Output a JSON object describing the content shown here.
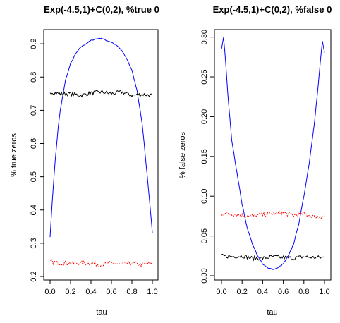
{
  "chart_data": [
    {
      "type": "line",
      "title": "Exp(-4.5,1)+C(0,2), %true 0",
      "xlabel": "tau",
      "ylabel": "% true zeros",
      "xlim": [
        0.0,
        1.0
      ],
      "ylim": [
        0.2,
        0.93
      ],
      "xticks": [
        "0.0",
        "0.2",
        "0.4",
        "0.6",
        "0.8",
        "1.0"
      ],
      "yticks": [
        "0.2",
        "0.3",
        "0.4",
        "0.5",
        "0.6",
        "0.7",
        "0.8",
        "0.9"
      ],
      "grid": false,
      "series": [
        {
          "color": "#0000ff",
          "style": "solid",
          "x": [
            0.0,
            0.02,
            0.05,
            0.08,
            0.1,
            0.15,
            0.2,
            0.25,
            0.3,
            0.35,
            0.4,
            0.45,
            0.5,
            0.55,
            0.6,
            0.65,
            0.7,
            0.75,
            0.8,
            0.85,
            0.9,
            0.92,
            0.95,
            0.98,
            1.0
          ],
          "values": [
            0.32,
            0.42,
            0.55,
            0.65,
            0.7,
            0.79,
            0.84,
            0.87,
            0.89,
            0.9,
            0.91,
            0.915,
            0.917,
            0.91,
            0.905,
            0.895,
            0.88,
            0.855,
            0.82,
            0.76,
            0.66,
            0.6,
            0.5,
            0.4,
            0.33
          ]
        },
        {
          "color": "#000000",
          "style": "solid-noisy",
          "x": [
            0.0,
            0.1,
            0.2,
            0.3,
            0.4,
            0.5,
            0.6,
            0.7,
            0.8,
            0.9,
            1.0
          ],
          "values": [
            0.755,
            0.75,
            0.75,
            0.745,
            0.752,
            0.755,
            0.75,
            0.755,
            0.745,
            0.748,
            0.745
          ]
        },
        {
          "color": "#ff0000",
          "style": "dotted",
          "x": [
            0.0,
            0.1,
            0.2,
            0.3,
            0.4,
            0.5,
            0.6,
            0.7,
            0.8,
            0.9,
            1.0
          ],
          "values": [
            0.245,
            0.24,
            0.24,
            0.24,
            0.24,
            0.235,
            0.24,
            0.235,
            0.24,
            0.235,
            0.24
          ]
        }
      ]
    },
    {
      "type": "line",
      "title": "Exp(-4.5,1)+C(0,2), %false 0",
      "xlabel": "tau",
      "ylabel": "% false zeros",
      "xlim": [
        0.0,
        1.0
      ],
      "ylim": [
        0.0,
        0.305
      ],
      "xticks": [
        "0.0",
        "0.2",
        "0.4",
        "0.6",
        "0.8",
        "1.0"
      ],
      "yticks": [
        "0.00",
        "0.05",
        "0.10",
        "0.15",
        "0.20",
        "0.25",
        "0.30"
      ],
      "grid": false,
      "series": [
        {
          "color": "#0000ff",
          "style": "solid",
          "x": [
            0.0,
            0.02,
            0.04,
            0.06,
            0.08,
            0.1,
            0.15,
            0.2,
            0.25,
            0.3,
            0.35,
            0.4,
            0.45,
            0.5,
            0.55,
            0.6,
            0.65,
            0.7,
            0.75,
            0.8,
            0.85,
            0.9,
            0.94,
            0.96,
            0.98,
            1.0
          ],
          "values": [
            0.285,
            0.3,
            0.27,
            0.23,
            0.2,
            0.17,
            0.13,
            0.09,
            0.06,
            0.04,
            0.025,
            0.015,
            0.01,
            0.008,
            0.01,
            0.015,
            0.025,
            0.04,
            0.065,
            0.1,
            0.14,
            0.19,
            0.24,
            0.27,
            0.295,
            0.28
          ]
        },
        {
          "color": "#000000",
          "style": "solid-noisy",
          "x": [
            0.0,
            0.1,
            0.2,
            0.3,
            0.4,
            0.5,
            0.6,
            0.7,
            0.8,
            0.9,
            1.0
          ],
          "values": [
            0.025,
            0.024,
            0.025,
            0.022,
            0.022,
            0.024,
            0.023,
            0.022,
            0.024,
            0.023,
            0.023
          ]
        },
        {
          "color": "#ff0000",
          "style": "dotted",
          "x": [
            0.0,
            0.1,
            0.2,
            0.3,
            0.4,
            0.5,
            0.6,
            0.7,
            0.8,
            0.9,
            1.0
          ],
          "values": [
            0.078,
            0.078,
            0.076,
            0.075,
            0.077,
            0.078,
            0.079,
            0.076,
            0.078,
            0.074,
            0.075
          ]
        }
      ]
    }
  ]
}
